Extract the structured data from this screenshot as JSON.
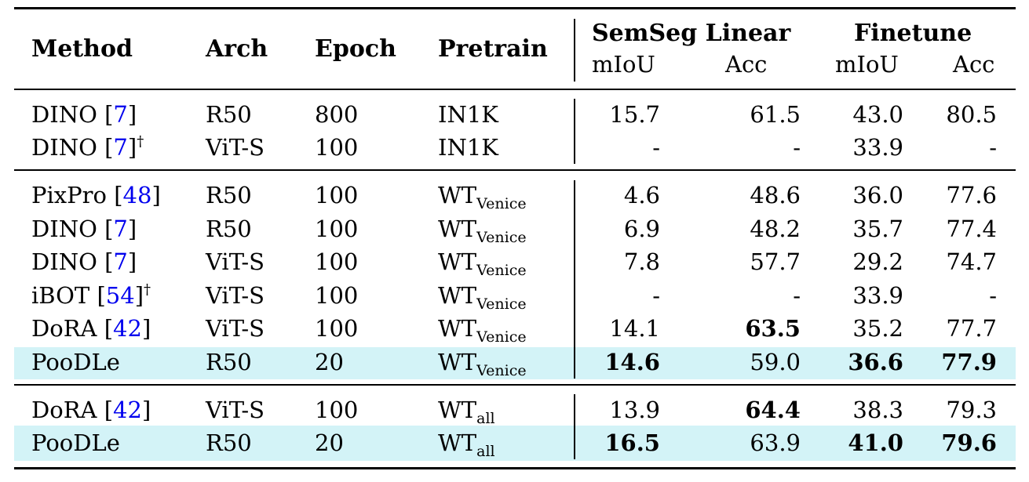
{
  "header": {
    "method": "Method",
    "arch": "Arch",
    "epoch": "Epoch",
    "pretrain": "Pretrain",
    "semseg": "SemSeg Linear",
    "finetune": "Finetune",
    "miou": "mIoU",
    "acc": "Acc"
  },
  "rows": [
    {
      "name": "DINO",
      "cite": "7",
      "dagger": "",
      "arch": "R50",
      "epoch": "800",
      "pre": "IN1K",
      "sub": "",
      "s_miou": "15.7",
      "s_acc": "61.5",
      "f_miou": "43.0",
      "f_acc": "80.5"
    },
    {
      "name": "DINO",
      "cite": "7",
      "dagger": "†",
      "arch": "ViT-S",
      "epoch": "100",
      "pre": "IN1K",
      "sub": "",
      "s_miou": "-",
      "s_acc": "-",
      "f_miou": "33.9",
      "f_acc": "-"
    },
    {
      "name": "PixPro",
      "cite": "48",
      "dagger": "",
      "arch": "R50",
      "epoch": "100",
      "pre": "WT",
      "sub": "Venice",
      "s_miou": "4.6",
      "s_acc": "48.6",
      "f_miou": "36.0",
      "f_acc": "77.6"
    },
    {
      "name": "DINO",
      "cite": "7",
      "dagger": "",
      "arch": "R50",
      "epoch": "100",
      "pre": "WT",
      "sub": "Venice",
      "s_miou": "6.9",
      "s_acc": "48.2",
      "f_miou": "35.7",
      "f_acc": "77.4"
    },
    {
      "name": "DINO",
      "cite": "7",
      "dagger": "",
      "arch": "ViT-S",
      "epoch": "100",
      "pre": "WT",
      "sub": "Venice",
      "s_miou": "7.8",
      "s_acc": "57.7",
      "f_miou": "29.2",
      "f_acc": "74.7"
    },
    {
      "name": "iBOT",
      "cite": "54",
      "dagger": "†",
      "arch": "ViT-S",
      "epoch": "100",
      "pre": "WT",
      "sub": "Venice",
      "s_miou": "-",
      "s_acc": "-",
      "f_miou": "33.9",
      "f_acc": "-"
    },
    {
      "name": "DoRA",
      "cite": "42",
      "dagger": "",
      "arch": "ViT-S",
      "epoch": "100",
      "pre": "WT",
      "sub": "Venice",
      "s_miou": "14.1",
      "s_acc": "63.5",
      "f_miou": "35.2",
      "f_acc": "77.7"
    },
    {
      "name": "PooDLe",
      "cite": "",
      "dagger": "",
      "arch": "R50",
      "epoch": "20",
      "pre": "WT",
      "sub": "Venice",
      "s_miou": "14.6",
      "s_acc": "59.0",
      "f_miou": "36.6",
      "f_acc": "77.9"
    },
    {
      "name": "DoRA",
      "cite": "42",
      "dagger": "",
      "arch": "ViT-S",
      "epoch": "100",
      "pre": "WT",
      "sub": "all",
      "s_miou": "13.9",
      "s_acc": "64.4",
      "f_miou": "38.3",
      "f_acc": "79.3"
    },
    {
      "name": "PooDLe",
      "cite": "",
      "dagger": "",
      "arch": "R50",
      "epoch": "20",
      "pre": "WT",
      "sub": "all",
      "s_miou": "16.5",
      "s_acc": "63.9",
      "f_miou": "41.0",
      "f_acc": "79.6"
    }
  ],
  "highlight_color": "#d3f3f7",
  "citation_color": "#0000ee"
}
